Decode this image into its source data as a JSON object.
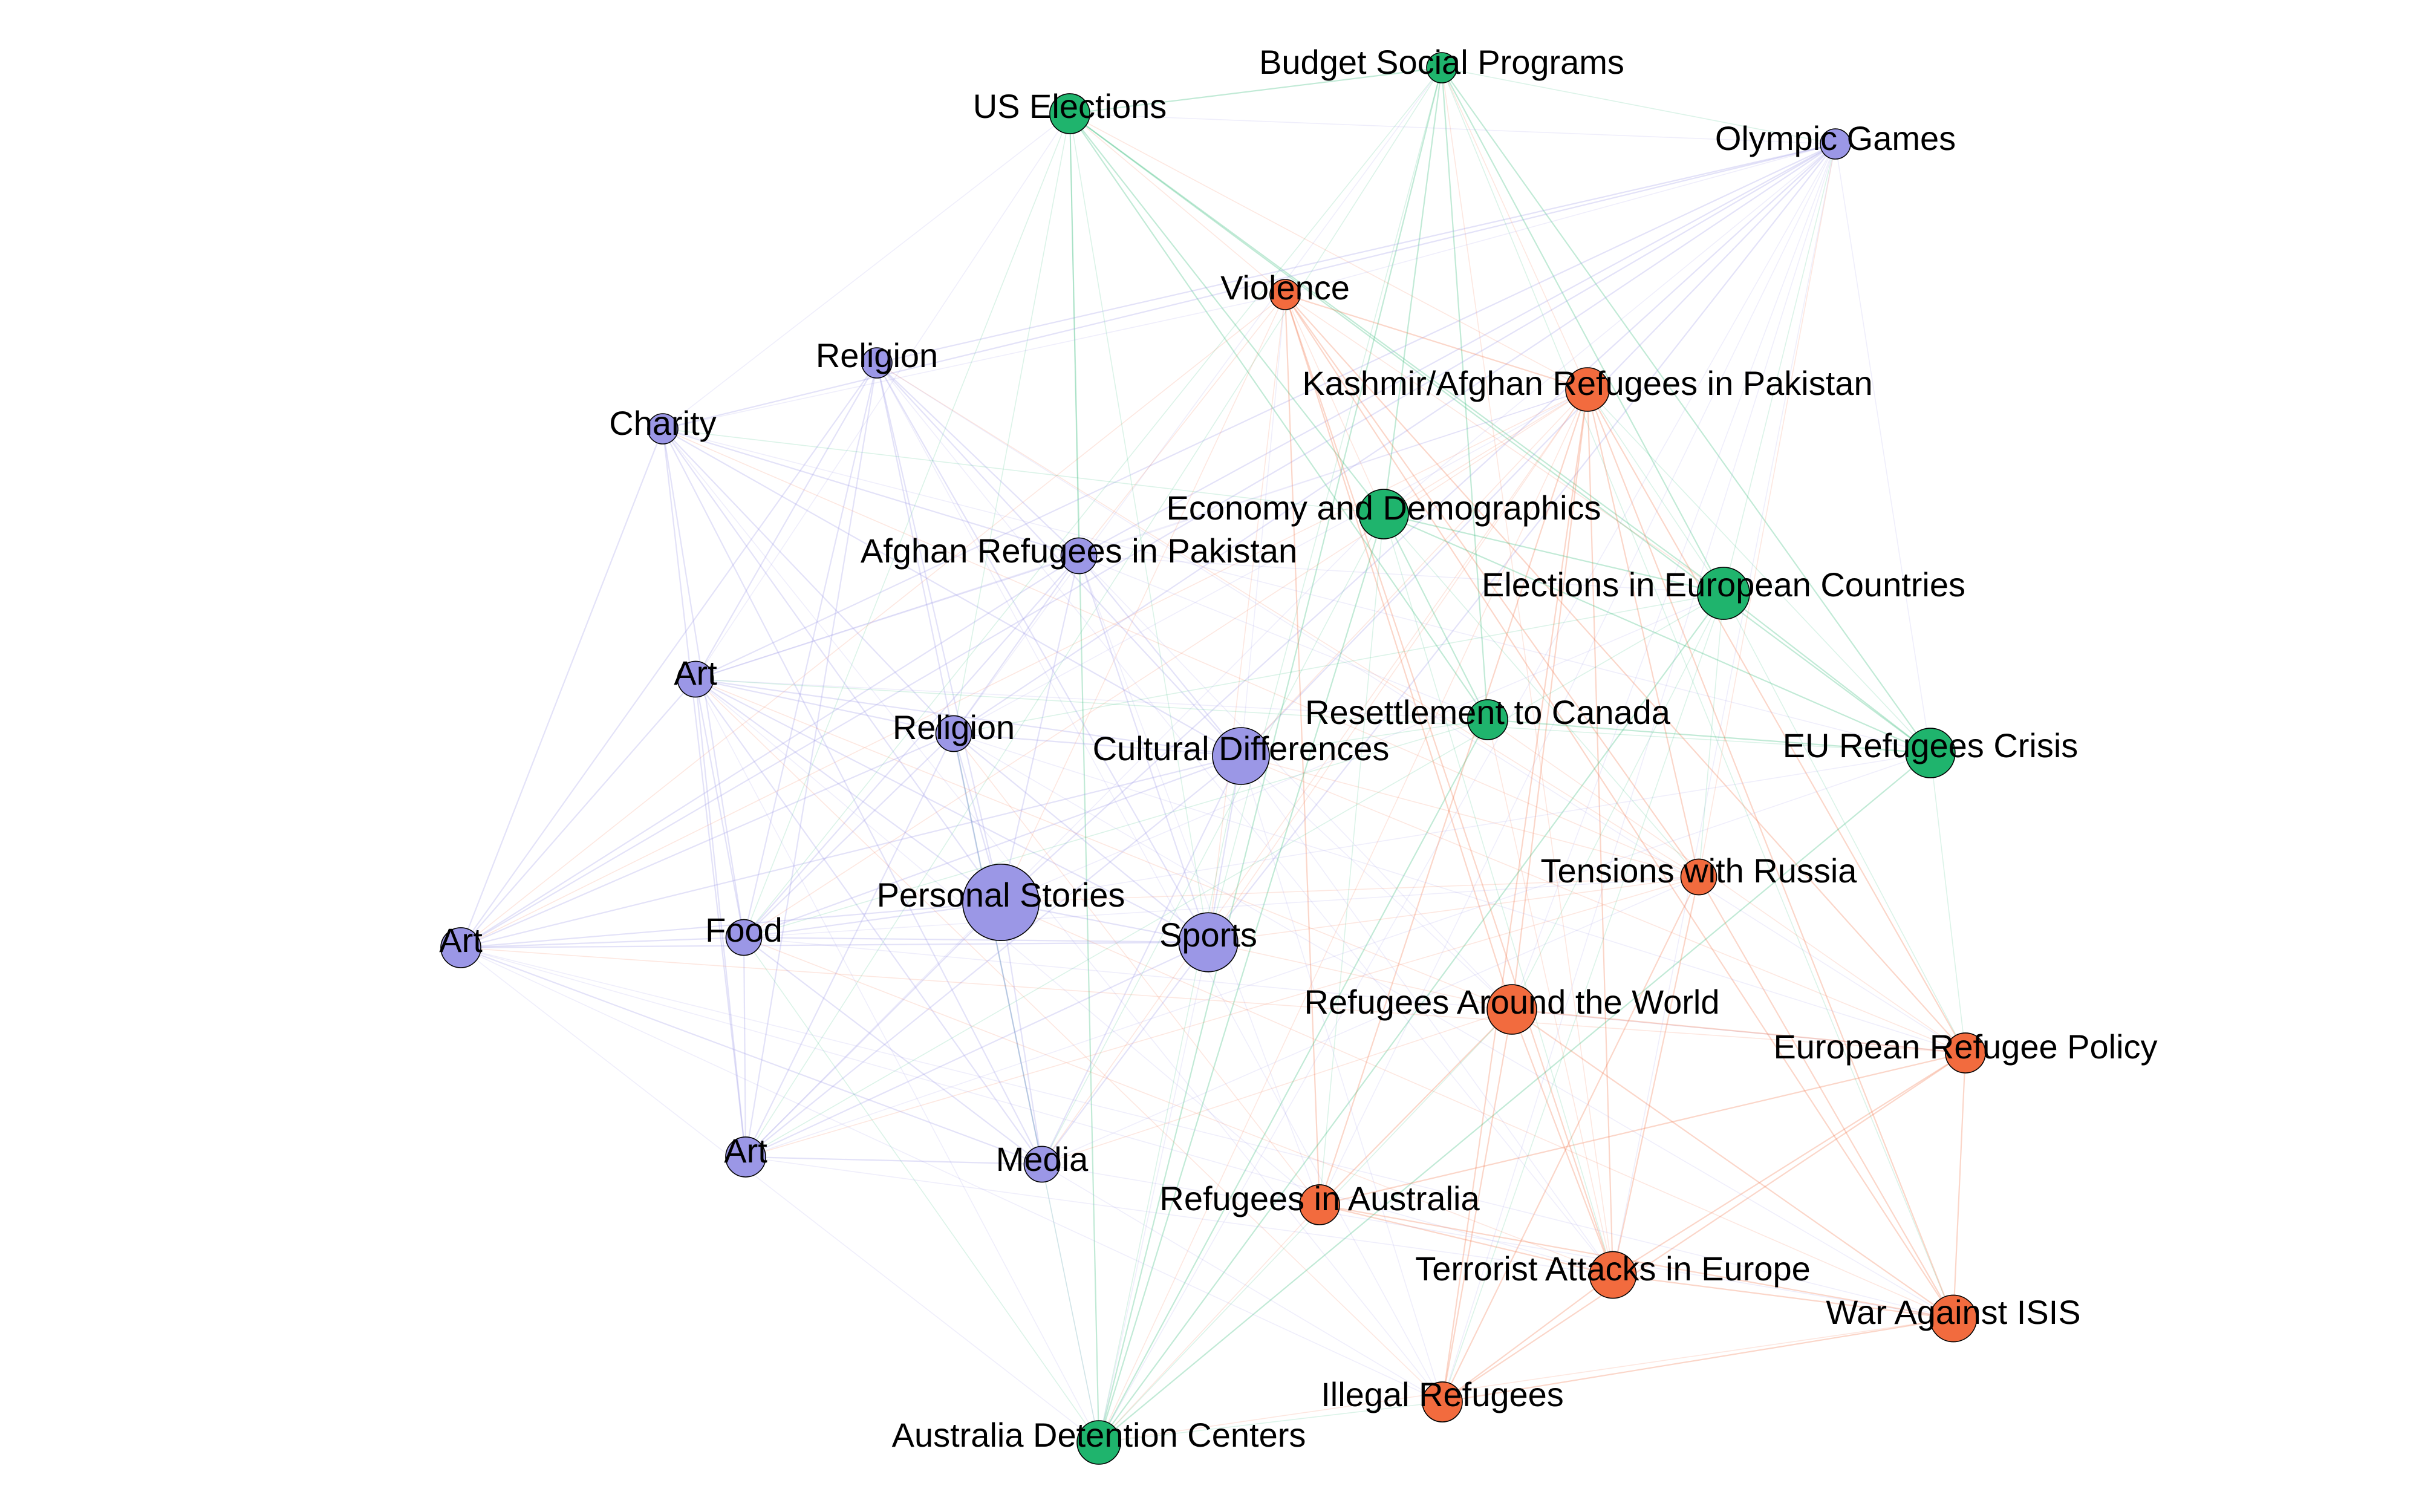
{
  "colors": {
    "purple": "#9b97e6",
    "green": "#1fb46d",
    "orange": "#f26b3e"
  },
  "nodes": [
    {
      "id": "budget_social_programs",
      "label": "Budget Social Programs",
      "group": "green",
      "weight": 1
    },
    {
      "id": "us_elections",
      "label": "US Elections",
      "group": "green",
      "weight": 3
    },
    {
      "id": "olympic_games",
      "label": "Olympic Games",
      "group": "purple",
      "weight": 1
    },
    {
      "id": "violence",
      "label": "Violence",
      "group": "orange",
      "weight": 1
    },
    {
      "id": "religion_1",
      "label": "Religion",
      "group": "purple",
      "weight": 1
    },
    {
      "id": "kashmir_afghan",
      "label": "Kashmir/Afghan Refugees in Pakistan",
      "group": "orange",
      "weight": 4
    },
    {
      "id": "charity",
      "label": "Charity",
      "group": "purple",
      "weight": 1
    },
    {
      "id": "economy_demographics",
      "label": "Economy and Demographics",
      "group": "green",
      "weight": 6
    },
    {
      "id": "afghan_refugees_pakistan",
      "label": "Afghan Refugees in Pakistan",
      "group": "purple",
      "weight": 2
    },
    {
      "id": "elections_european",
      "label": "Elections in European Countries",
      "group": "green",
      "weight": 7
    },
    {
      "id": "art_1",
      "label": "Art",
      "group": "purple",
      "weight": 2
    },
    {
      "id": "resettlement_canada",
      "label": "Resettlement to Canada",
      "group": "green",
      "weight": 3
    },
    {
      "id": "religion_2",
      "label": "Religion",
      "group": "purple",
      "weight": 2
    },
    {
      "id": "cultural_differences",
      "label": "Cultural Differences",
      "group": "purple",
      "weight": 9
    },
    {
      "id": "eu_refugees_crisis",
      "label": "EU Refugees Crisis",
      "group": "green",
      "weight": 6
    },
    {
      "id": "tensions_russia",
      "label": "Tensions with Russia",
      "group": "orange",
      "weight": 2
    },
    {
      "id": "art_2",
      "label": "Art",
      "group": "purple",
      "weight": 3
    },
    {
      "id": "food",
      "label": "Food",
      "group": "purple",
      "weight": 2
    },
    {
      "id": "personal_stories",
      "label": "Personal Stories",
      "group": "purple",
      "weight": 20
    },
    {
      "id": "sports",
      "label": "Sports",
      "group": "purple",
      "weight": 10
    },
    {
      "id": "refugees_around_world",
      "label": "Refugees Around the World",
      "group": "orange",
      "weight": 6
    },
    {
      "id": "european_refugee_policy",
      "label": "European Refugee Policy",
      "group": "orange",
      "weight": 3
    },
    {
      "id": "art_3",
      "label": "Art",
      "group": "purple",
      "weight": 3
    },
    {
      "id": "media",
      "label": "Media",
      "group": "purple",
      "weight": 2
    },
    {
      "id": "refugees_australia",
      "label": "Refugees in Australia",
      "group": "orange",
      "weight": 3
    },
    {
      "id": "terrorist_attacks_europe",
      "label": "Terrorist Attacks in Europe",
      "group": "orange",
      "weight": 5
    },
    {
      "id": "war_against_isis",
      "label": "War Against ISIS",
      "group": "orange",
      "weight": 5
    },
    {
      "id": "illegal_refugees",
      "label": "Illegal Refugees",
      "group": "orange",
      "weight": 3
    },
    {
      "id": "australia_detention",
      "label": "Australia Detention Centers",
      "group": "green",
      "weight": 4
    }
  ]
}
